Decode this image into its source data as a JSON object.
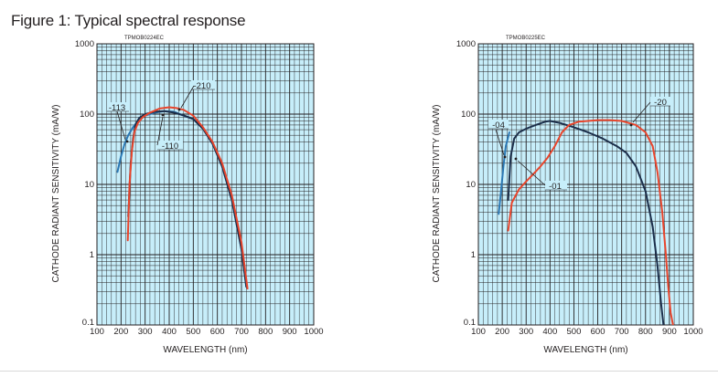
{
  "figure_title": "Figure 1: Typical spectral response",
  "colors": {
    "plot_background": "#c7eefa",
    "grid": "#231f20",
    "blue": "#2b78b4",
    "red": "#e8452c",
    "navy": "#1b2e4a"
  },
  "chart_data": [
    {
      "type": "line",
      "code": "TPMOB0224EC",
      "xlabel": "WAVELENGTH (nm)",
      "ylabel": "CATHODE RADIANT SENSITIVITY (mA/W)",
      "xlim": [
        100,
        1000
      ],
      "ylim": [
        0.1,
        1000
      ],
      "yscale": "log",
      "grid": true,
      "xticks": [
        "100",
        "200",
        "300",
        "400",
        "500",
        "600",
        "700",
        "800",
        "900",
        "1000"
      ],
      "yticks": [
        "0.1",
        "1",
        "10",
        "100",
        "1000"
      ],
      "series": [
        {
          "name": "-113",
          "color": "blue",
          "x": [
            185,
            200,
            215,
            230,
            250,
            270,
            300,
            340,
            380,
            420,
            460,
            500,
            540,
            580,
            620,
            660,
            700,
            720
          ],
          "y": [
            15,
            25,
            38,
            50,
            65,
            80,
            95,
            105,
            110,
            108,
            95,
            85,
            62,
            38,
            18,
            6,
            1.2,
            0.35
          ]
        },
        {
          "name": "-110",
          "color": "navy",
          "x": [
            230,
            240,
            250,
            260,
            275,
            300,
            340,
            380,
            420,
            460,
            500,
            540,
            580,
            620,
            660,
            700,
            720
          ],
          "y": [
            3.5,
            20,
            45,
            70,
            88,
            100,
            108,
            110,
            105,
            96,
            85,
            62,
            38,
            18,
            6,
            1.2,
            0.35
          ]
        },
        {
          "name": "-210",
          "color": "red",
          "x": [
            228,
            235,
            245,
            255,
            270,
            290,
            320,
            360,
            400,
            430,
            460,
            500,
            540,
            580,
            620,
            660,
            700,
            725
          ],
          "y": [
            1.6,
            10,
            30,
            55,
            75,
            90,
            105,
            120,
            125,
            122,
            115,
            95,
            65,
            40,
            20,
            7,
            1.5,
            0.33
          ]
        }
      ],
      "annotations": [
        "-113",
        "-210",
        "-110"
      ]
    },
    {
      "type": "line",
      "code": "TPMOB0225EC",
      "xlabel": "WAVELENGTH (nm)",
      "ylabel": "CATHODE RADIANT SENSITIVITY (mA/W)",
      "xlim": [
        100,
        1000
      ],
      "ylim": [
        0.1,
        1000
      ],
      "yscale": "log",
      "grid": true,
      "xticks": [
        "100",
        "200",
        "300",
        "400",
        "500",
        "600",
        "700",
        "800",
        "900",
        "1000"
      ],
      "yticks": [
        "0.1",
        "1",
        "10",
        "100",
        "1000"
      ],
      "series": [
        {
          "name": "-04",
          "color": "blue",
          "x": [
            185,
            195,
            205,
            215,
            230
          ],
          "y": [
            3.8,
            8,
            18,
            35,
            55
          ]
        },
        {
          "name": "-01",
          "color": "navy",
          "x": [
            225,
            235,
            250,
            270,
            300,
            340,
            380,
            400,
            440,
            500,
            560,
            620,
            680,
            720,
            760,
            800,
            830,
            850,
            865,
            875
          ],
          "y": [
            6,
            25,
            45,
            55,
            62,
            70,
            78,
            80,
            75,
            65,
            55,
            45,
            35,
            28,
            18,
            8,
            2.5,
            0.7,
            0.2,
            0.1
          ]
        },
        {
          "name": "-20",
          "color": "red",
          "x": [
            225,
            240,
            270,
            300,
            330,
            360,
            390,
            420,
            450,
            480,
            520,
            600,
            650,
            700,
            760,
            800,
            830,
            850,
            870,
            885,
            895,
            905,
            915
          ],
          "y": [
            2.2,
            5.5,
            8.5,
            11,
            14,
            18,
            24,
            35,
            55,
            70,
            78,
            82,
            82,
            80,
            70,
            55,
            35,
            15,
            4,
            1,
            0.35,
            0.15,
            0.1
          ]
        }
      ],
      "annotations": [
        "-20",
        "-04",
        "-01"
      ]
    }
  ]
}
